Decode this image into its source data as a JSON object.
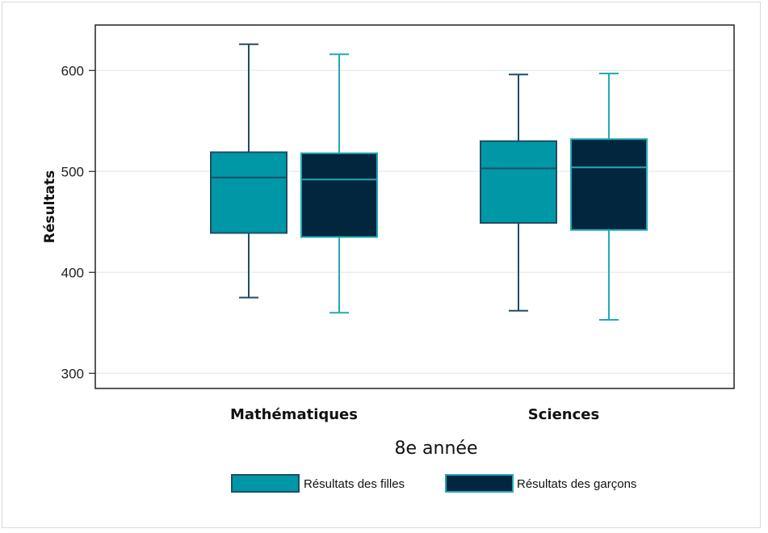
{
  "chart_data": {
    "type": "boxplot",
    "title": "",
    "xlabel": "8e année",
    "ylabel": "Résultats",
    "ylim": [
      285,
      645
    ],
    "yticks": [
      300,
      400,
      500,
      600
    ],
    "grid": true,
    "legend_position": "bottom",
    "categories": [
      "Mathématiques",
      "Sciences"
    ],
    "series": [
      {
        "name": "Résultats des filles",
        "fill": "#0097a7",
        "stroke": "#1f4e63",
        "boxes": [
          {
            "min": 375,
            "q1": 439,
            "median": 494,
            "q3": 519,
            "max": 626
          },
          {
            "min": 362,
            "q1": 449,
            "median": 503,
            "q3": 530,
            "max": 596
          }
        ]
      },
      {
        "name": "Résultats des garçons",
        "fill": "#02263e",
        "stroke": "#22a9b8",
        "boxes": [
          {
            "min": 360,
            "q1": 435,
            "median": 492,
            "q3": 518,
            "max": 616
          },
          {
            "min": 353,
            "q1": 442,
            "median": 504,
            "q3": 532,
            "max": 597
          }
        ]
      }
    ]
  }
}
